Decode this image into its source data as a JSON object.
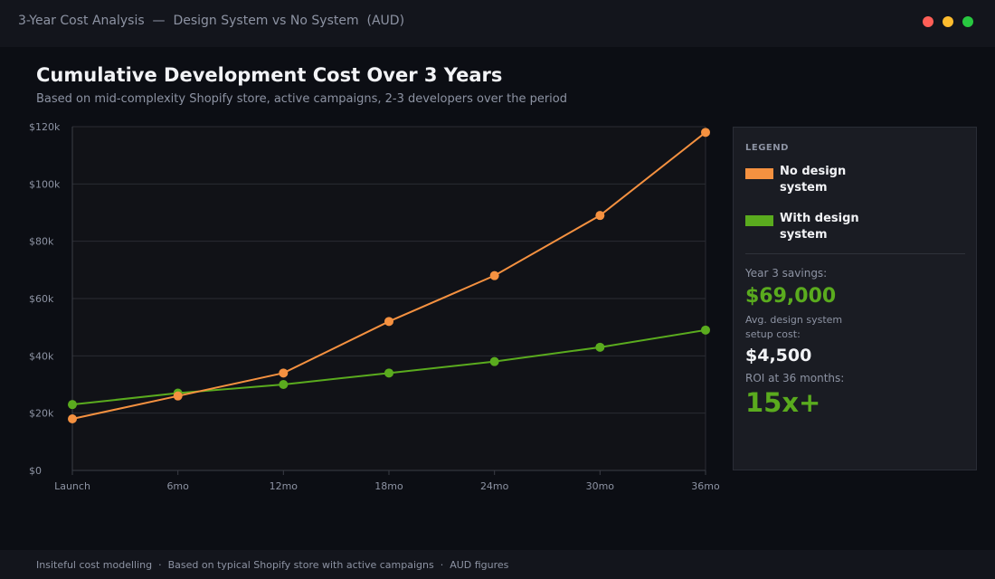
{
  "window": {
    "title": "3-Year Cost Analysis  —  Design System vs No System  (AUD)"
  },
  "header": {
    "title": "Cumulative Development Cost Over 3 Years",
    "subtitle": "Based on mid-complexity Shopify store, active campaigns, 2-3 developers over the period"
  },
  "colors": {
    "no_system": "#f59140",
    "with_system": "#5aab1e",
    "grid": "#2a2c33",
    "plot_bg": "#111217"
  },
  "chart_data": {
    "type": "line",
    "title": "Cumulative Development Cost Over 3 Years",
    "categories": [
      "Launch",
      "6mo",
      "12mo",
      "18mo",
      "24mo",
      "30mo",
      "36mo"
    ],
    "y_tick_labels": [
      "$0",
      "$20k",
      "$40k",
      "$60k",
      "$80k",
      "$100k",
      "$120k"
    ],
    "ylim": [
      0,
      120000
    ],
    "grid": true,
    "legend_position": "right",
    "series": [
      {
        "name": "No design system",
        "color": "#f59140",
        "values": [
          18000,
          26000,
          34000,
          52000,
          68000,
          89000,
          118000
        ]
      },
      {
        "name": "With design system",
        "color": "#5aab1e",
        "values": [
          23000,
          27000,
          30000,
          34000,
          38000,
          43000,
          49000
        ]
      }
    ]
  },
  "legend": {
    "title": "LEGEND",
    "items": [
      {
        "label": "No design system",
        "color": "#f59140"
      },
      {
        "label": "With design system",
        "color": "#5aab1e"
      }
    ]
  },
  "stats": {
    "savings_label": "Year 3 savings:",
    "savings_value": "$69,000",
    "setup_label": "Avg. design system setup cost:",
    "setup_value": "$4,500",
    "roi_label": "ROI at 36 months:",
    "roi_value": "15x+"
  },
  "footer": {
    "text": "Insiteful cost modelling  ·  Based on typical Shopify store with active campaigns  ·  AUD figures"
  }
}
